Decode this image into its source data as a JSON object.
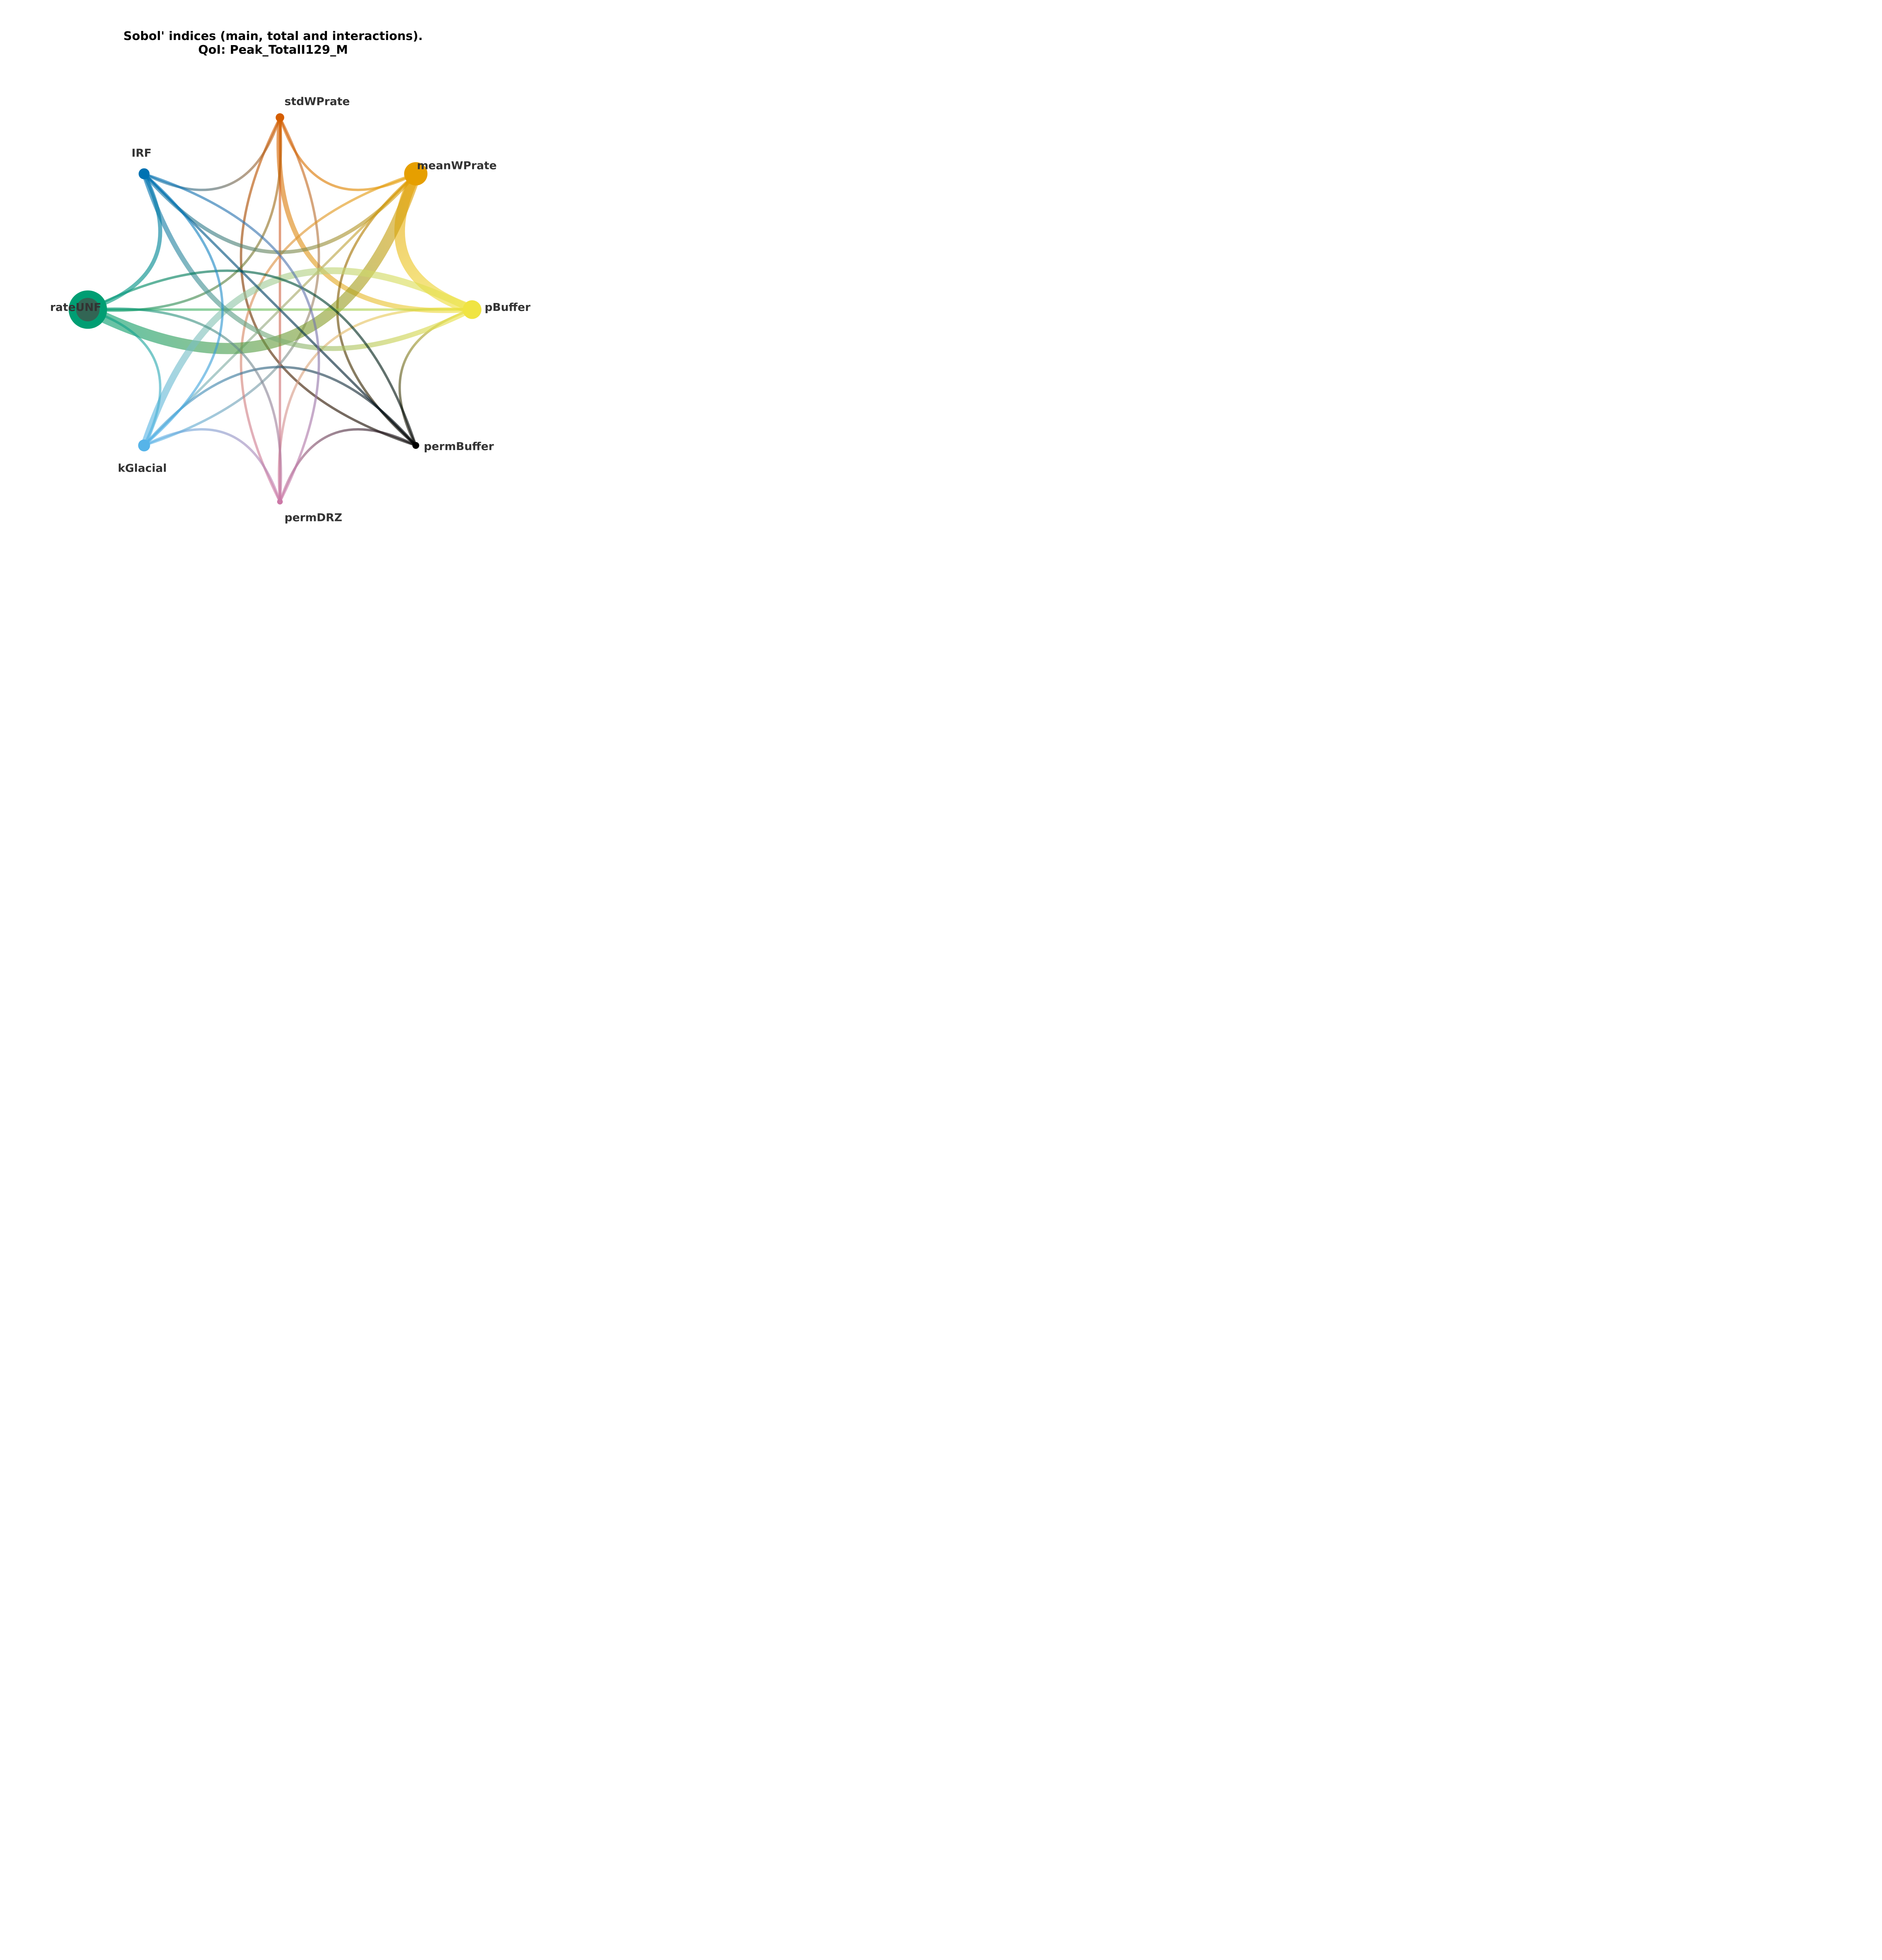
{
  "title_line1": "Sobol' indices (main, total and interactions).",
  "title_line2": "QoI: Peak_TotalI129_M",
  "chart_data": {
    "type": "chord",
    "nodes": [
      {
        "name": "stdWPrate",
        "color": "#d55e00",
        "total": 0.02
      },
      {
        "name": "meanWPrate",
        "color": "#e69f00",
        "total": 0.25
      },
      {
        "name": "pBuffer",
        "color": "#f0e442",
        "total": 0.15
      },
      {
        "name": "permBuffer",
        "color": "#000000",
        "total": 0.01
      },
      {
        "name": "permDRZ",
        "color": "#cc79a7",
        "total": 0.005
      },
      {
        "name": "kGlacial",
        "color": "#56b4e9",
        "total": 0.05
      },
      {
        "name": "rateUNF",
        "color": "#009e73",
        "total": 0.75
      },
      {
        "name": "IRF",
        "color": "#0072b2",
        "total": 0.04
      }
    ],
    "main_effects": [
      {
        "node": "rateUNF",
        "value": 0.45
      }
    ],
    "interactions": [
      {
        "a": "stdWPrate",
        "b": "meanWPrate",
        "value": 0.2
      },
      {
        "a": "stdWPrate",
        "b": "pBuffer",
        "value": 0.6
      },
      {
        "a": "stdWPrate",
        "b": "permBuffer",
        "value": 0.2
      },
      {
        "a": "stdWPrate",
        "b": "permDRZ",
        "value": 0.2
      },
      {
        "a": "stdWPrate",
        "b": "kGlacial",
        "value": 0.2
      },
      {
        "a": "stdWPrate",
        "b": "rateUNF",
        "value": 0.2
      },
      {
        "a": "stdWPrate",
        "b": "IRF",
        "value": 0.2
      },
      {
        "a": "meanWPrate",
        "b": "pBuffer",
        "value": 1.5
      },
      {
        "a": "meanWPrate",
        "b": "permBuffer",
        "value": 0.2
      },
      {
        "a": "meanWPrate",
        "b": "permDRZ",
        "value": 0.2
      },
      {
        "a": "meanWPrate",
        "b": "kGlacial",
        "value": 0.2
      },
      {
        "a": "meanWPrate",
        "b": "rateUNF",
        "value": 1.6
      },
      {
        "a": "meanWPrate",
        "b": "IRF",
        "value": 0.4
      },
      {
        "a": "pBuffer",
        "b": "permBuffer",
        "value": 0.2
      },
      {
        "a": "pBuffer",
        "b": "permDRZ",
        "value": 0.2
      },
      {
        "a": "pBuffer",
        "b": "kGlacial",
        "value": 0.9
      },
      {
        "a": "pBuffer",
        "b": "rateUNF",
        "value": 0.2
      },
      {
        "a": "pBuffer",
        "b": "IRF",
        "value": 0.6
      },
      {
        "a": "permBuffer",
        "b": "permDRZ",
        "value": 0.2
      },
      {
        "a": "permBuffer",
        "b": "kGlacial",
        "value": 0.2
      },
      {
        "a": "permBuffer",
        "b": "rateUNF",
        "value": 0.2
      },
      {
        "a": "permBuffer",
        "b": "IRF",
        "value": 0.2
      },
      {
        "a": "permDRZ",
        "b": "kGlacial",
        "value": 0.2
      },
      {
        "a": "permDRZ",
        "b": "rateUNF",
        "value": 0.2
      },
      {
        "a": "permDRZ",
        "b": "IRF",
        "value": 0.2
      },
      {
        "a": "kGlacial",
        "b": "rateUNF",
        "value": 0.2
      },
      {
        "a": "kGlacial",
        "b": "IRF",
        "value": 0.2
      },
      {
        "a": "rateUNF",
        "b": "IRF",
        "value": 0.45
      }
    ]
  }
}
